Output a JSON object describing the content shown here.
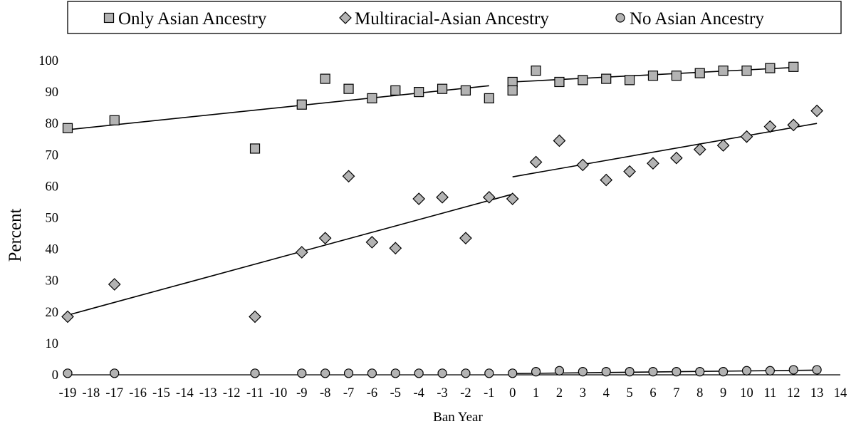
{
  "chart_data": {
    "type": "scatter",
    "xlabel": "Ban Year",
    "ylabel": "Percent",
    "xlim": [
      -19,
      14
    ],
    "ylim": [
      0,
      100
    ],
    "x_ticks": [
      -19,
      -18,
      -17,
      -16,
      -15,
      -14,
      -13,
      -12,
      -11,
      -10,
      -9,
      -8,
      -7,
      -6,
      -5,
      -4,
      -3,
      -2,
      -1,
      0,
      1,
      2,
      3,
      4,
      5,
      6,
      7,
      8,
      9,
      10,
      11,
      12,
      13,
      14
    ],
    "y_ticks": [
      0,
      10,
      20,
      30,
      40,
      50,
      60,
      70,
      80,
      90,
      100
    ],
    "grid": false,
    "legend_position": "top",
    "series": [
      {
        "name": "Only Asian Ancestry",
        "marker": "square",
        "color": "#b3b3b3",
        "points": [
          [
            -19,
            78.5
          ],
          [
            -17,
            81
          ],
          [
            -11,
            72
          ],
          [
            -9,
            86
          ],
          [
            -8,
            94.2
          ],
          [
            -7,
            91
          ],
          [
            -6,
            88
          ],
          [
            -5,
            90.5
          ],
          [
            -4,
            90
          ],
          [
            -3,
            91
          ],
          [
            -2,
            90.5
          ],
          [
            -1,
            88
          ],
          [
            0,
            93.2
          ],
          [
            0,
            90.5
          ],
          [
            1,
            96.8
          ],
          [
            2,
            93.2
          ],
          [
            3,
            93.8
          ],
          [
            4,
            94.2
          ],
          [
            5,
            93.8
          ],
          [
            6,
            95.2
          ],
          [
            7,
            95.2
          ],
          [
            8,
            96
          ],
          [
            9,
            96.8
          ],
          [
            10,
            96.8
          ],
          [
            11,
            97.6
          ],
          [
            12,
            98
          ]
        ]
      },
      {
        "name": "Multiracial-Asian Ancestry",
        "marker": "diamond",
        "color": "#b3b3b3",
        "points": [
          [
            -19,
            18.5
          ],
          [
            -17,
            28.8
          ],
          [
            -11,
            18.5
          ],
          [
            -9,
            39
          ],
          [
            -8,
            43.5
          ],
          [
            -7,
            63.2
          ],
          [
            -6,
            42.2
          ],
          [
            -5,
            40.3
          ],
          [
            -4,
            56
          ],
          [
            -3,
            56.5
          ],
          [
            -2,
            43.5
          ],
          [
            -1,
            56.5
          ],
          [
            0,
            56
          ],
          [
            1,
            67.7
          ],
          [
            2,
            74.5
          ],
          [
            3,
            66.8
          ],
          [
            4,
            62
          ],
          [
            5,
            64.7
          ],
          [
            6,
            67.3
          ],
          [
            7,
            69
          ],
          [
            8,
            71.7
          ],
          [
            9,
            73
          ],
          [
            10,
            75.8
          ],
          [
            11,
            79
          ],
          [
            12,
            79.5
          ],
          [
            13,
            84
          ]
        ]
      },
      {
        "name": "No Asian Ancestry",
        "marker": "circle",
        "color": "#b3b3b3",
        "points": [
          [
            -19,
            0.5
          ],
          [
            -17,
            0.5
          ],
          [
            -11,
            0.5
          ],
          [
            -9,
            0.5
          ],
          [
            -8,
            0.5
          ],
          [
            -7,
            0.5
          ],
          [
            -6,
            0.5
          ],
          [
            -5,
            0.5
          ],
          [
            -4,
            0.5
          ],
          [
            -3,
            0.5
          ],
          [
            -2,
            0.5
          ],
          [
            -1,
            0.5
          ],
          [
            0,
            0.5
          ],
          [
            1,
            1
          ],
          [
            2,
            1.3
          ],
          [
            3,
            1
          ],
          [
            4,
            1
          ],
          [
            5,
            1
          ],
          [
            6,
            1
          ],
          [
            7,
            1
          ],
          [
            8,
            1
          ],
          [
            9,
            1
          ],
          [
            10,
            1.3
          ],
          [
            11,
            1.3
          ],
          [
            12,
            1.6
          ],
          [
            13,
            1.6
          ]
        ]
      }
    ],
    "trend_lines": [
      {
        "series": "Only Asian Ancestry",
        "from": [
          -19,
          78
        ],
        "to": [
          -1,
          92
        ]
      },
      {
        "series": "Only Asian Ancestry",
        "from": [
          0,
          93.2
        ],
        "to": [
          12,
          97.8
        ]
      },
      {
        "series": "Multiracial-Asian Ancestry",
        "from": [
          -19,
          19
        ],
        "to": [
          0,
          57.5
        ]
      },
      {
        "series": "Multiracial-Asian Ancestry",
        "from": [
          0,
          63
        ],
        "to": [
          13,
          80
        ]
      },
      {
        "series": "No Asian Ancestry",
        "from": [
          0,
          0.4
        ],
        "to": [
          13,
          1.5
        ]
      }
    ]
  }
}
